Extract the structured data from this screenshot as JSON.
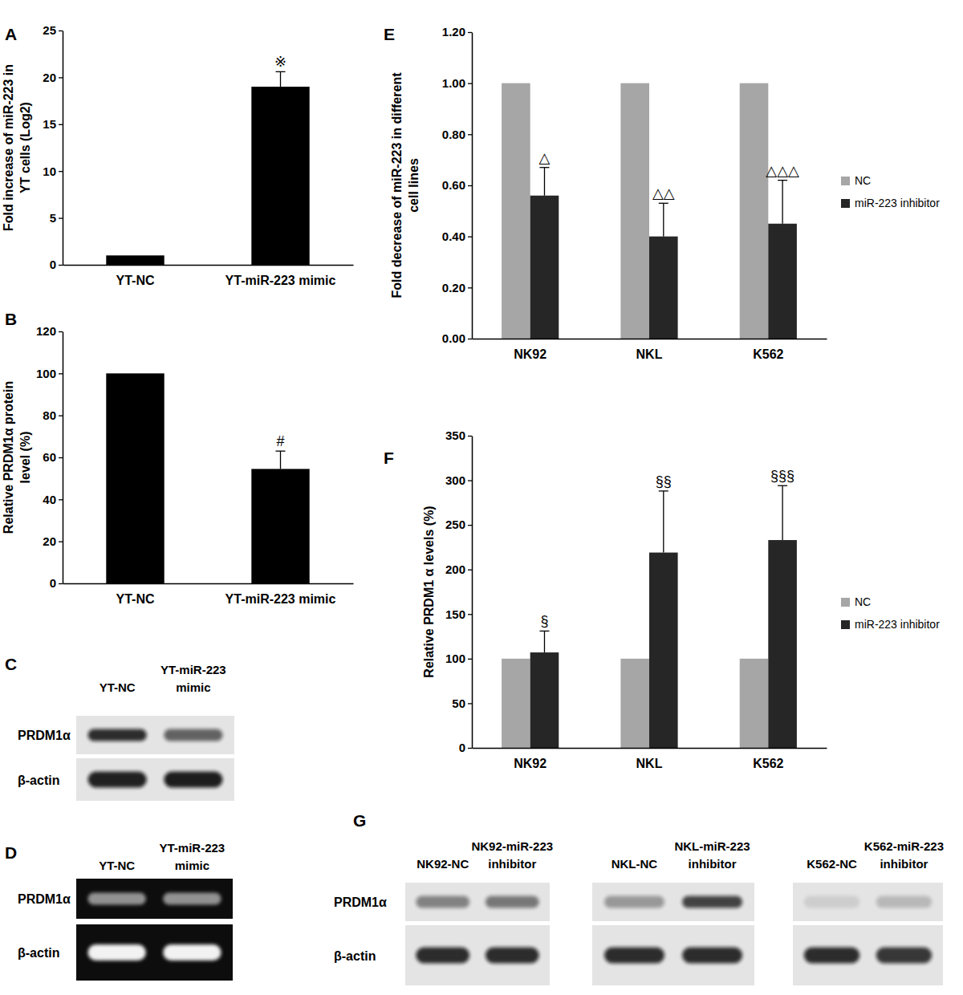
{
  "chart_data": [
    {
      "title": "A",
      "type": "bar",
      "categories": [
        "YT-NC",
        "YT-miR-223 mimic"
      ],
      "values": [
        1,
        19.0
      ],
      "error": [
        null,
        1.6
      ],
      "color": "#000000",
      "ylabel": "Fold increase of miR-223 in YT cells (Log2)",
      "ylim": [
        0,
        25
      ],
      "yticks": [
        0,
        5,
        10,
        15,
        20,
        25
      ],
      "annotations": [
        {
          "category": "YT-miR-223 mimic",
          "text": "※"
        }
      ]
    },
    {
      "title": "B",
      "type": "bar",
      "categories": [
        "YT-NC",
        "YT-miR-223 mimic"
      ],
      "values": [
        100,
        54.5
      ],
      "error": [
        null,
        8.5
      ],
      "color": "#000000",
      "ylabel": "Relative PRDM1α protein level (%)",
      "ylim": [
        0,
        120
      ],
      "yticks": [
        0,
        20,
        40,
        60,
        80,
        100,
        120
      ],
      "annotations": [
        {
          "category": "YT-miR-223 mimic",
          "text": "#"
        }
      ]
    },
    {
      "title": "C",
      "type": "blot",
      "categories": [
        "YT-NC",
        "YT-miR-223 mimic"
      ],
      "series": [
        {
          "name": "PRDM1α",
          "values": [
            0.85,
            0.6
          ]
        },
        {
          "name": "β-actin",
          "values": [
            0.9,
            0.92
          ]
        }
      ]
    },
    {
      "title": "D",
      "type": "gel",
      "categories": [
        "YT-NC",
        "YT-miR-223 mimic"
      ],
      "series": [
        {
          "name": "PRDM1α",
          "values": [
            0.55,
            0.55
          ]
        },
        {
          "name": "β-actin",
          "values": [
            0.95,
            0.95
          ]
        }
      ]
    },
    {
      "title": "E",
      "type": "bar",
      "categories": [
        "NK92",
        "NKL",
        "K562"
      ],
      "series": [
        {
          "name": "NC",
          "color": "#a6a6a6",
          "values": [
            1.0,
            1.0,
            1.0
          ],
          "error": [
            null,
            null,
            null
          ]
        },
        {
          "name": "miR-223 inhibitor",
          "color": "#262626",
          "values": [
            0.56,
            0.4,
            0.45
          ],
          "error": [
            0.11,
            0.13,
            0.17
          ]
        }
      ],
      "ylabel": "Fold decrease of miR-223 in different cell lines",
      "ylim": [
        0,
        1.2
      ],
      "yticks": [
        {
          "value": 0,
          "label": "0.00"
        },
        {
          "value": 0.2,
          "label": "0.20"
        },
        {
          "value": 0.4,
          "label": "0.40"
        },
        {
          "value": 0.6,
          "label": "0.60"
        },
        {
          "value": 0.8,
          "label": "0.80"
        },
        {
          "value": 1.0,
          "label": "1.00"
        },
        {
          "value": 1.2,
          "label": "1.20"
        }
      ],
      "legend": "right",
      "annotations": [
        {
          "category": "NK92",
          "series": "miR-223 inhibitor",
          "text": "△"
        },
        {
          "category": "NKL",
          "series": "miR-223 inhibitor",
          "text": "△△"
        },
        {
          "category": "K562",
          "series": "miR-223 inhibitor",
          "text": "△△△"
        }
      ]
    },
    {
      "title": "F",
      "type": "bar",
      "categories": [
        "NK92",
        "NKL",
        "K562"
      ],
      "series": [
        {
          "name": "NC",
          "color": "#a6a6a6",
          "values": [
            100,
            100,
            100
          ],
          "error": [
            null,
            null,
            null
          ]
        },
        {
          "name": "miR-223 inhibitor",
          "color": "#262626",
          "values": [
            107,
            219,
            233
          ],
          "error": [
            24,
            69,
            61
          ]
        }
      ],
      "ylabel": "Relative PRDM1 α levels (%)",
      "ylim": [
        0,
        350
      ],
      "yticks": [
        0,
        50,
        100,
        150,
        200,
        250,
        300,
        350
      ],
      "legend": "right",
      "annotations": [
        {
          "category": "NK92",
          "series": "miR-223 inhibitor",
          "text": "§"
        },
        {
          "category": "NKL",
          "series": "miR-223 inhibitor",
          "text": "§§"
        },
        {
          "category": "K562",
          "series": "miR-223 inhibitor",
          "text": "§§§"
        }
      ]
    },
    {
      "title": "G",
      "type": "blot",
      "categories": [
        "NK92-NC",
        "NK92-miR-223 inhibitor",
        "NKL-NC",
        "NKL-miR-223 inhibitor",
        "K562-NC",
        "K562-miR-223 inhibitor"
      ],
      "series": [
        {
          "name": "PRDM1α",
          "values": [
            0.45,
            0.5,
            0.35,
            0.75,
            0.1,
            0.2
          ]
        },
        {
          "name": "β-actin",
          "values": [
            0.85,
            0.85,
            0.85,
            0.85,
            0.85,
            0.8
          ]
        }
      ]
    }
  ]
}
